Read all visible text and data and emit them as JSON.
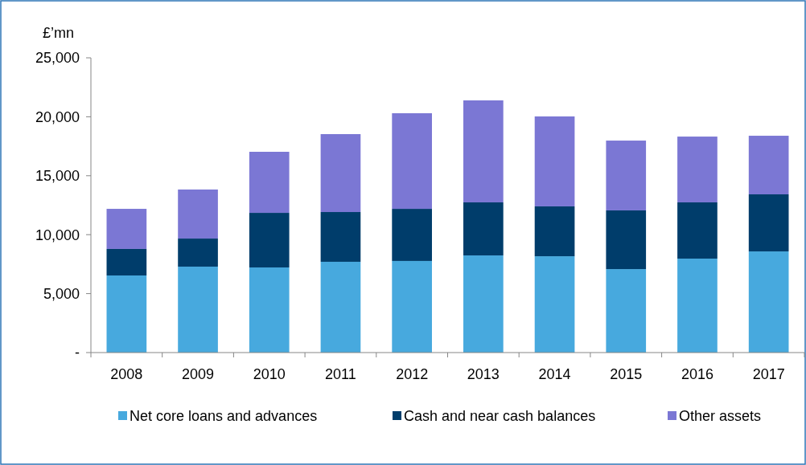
{
  "chart_data": {
    "type": "bar",
    "stacked": true,
    "ylabel": "£’mn",
    "categories": [
      "2008",
      "2009",
      "2010",
      "2011",
      "2012",
      "2013",
      "2014",
      "2015",
      "2016",
      "2017"
    ],
    "series": [
      {
        "name": "Net core loans and advances",
        "color": "#47a9de",
        "values": [
          6540,
          7290,
          7220,
          7700,
          7770,
          8240,
          8170,
          7080,
          7970,
          8580
        ]
      },
      {
        "name": "Cash and near cash balances",
        "color": "#003d6b",
        "values": [
          2250,
          2380,
          4630,
          4220,
          4420,
          4500,
          4230,
          4980,
          4770,
          4840
        ]
      },
      {
        "name": "Other assets",
        "color": "#7b77d4",
        "values": [
          3400,
          4160,
          5180,
          6610,
          8110,
          8650,
          7630,
          5920,
          5580,
          4970
        ]
      }
    ],
    "ylim": [
      0,
      25000
    ],
    "yticks": [
      {
        "value": 0,
        "label": "-"
      },
      {
        "value": 5000,
        "label": "5,000"
      },
      {
        "value": 10000,
        "label": "10,000"
      },
      {
        "value": 15000,
        "label": "15,000"
      },
      {
        "value": 20000,
        "label": "20,000"
      },
      {
        "value": 25000,
        "label": "25,000"
      }
    ],
    "grid": false,
    "legend": "bottom"
  }
}
